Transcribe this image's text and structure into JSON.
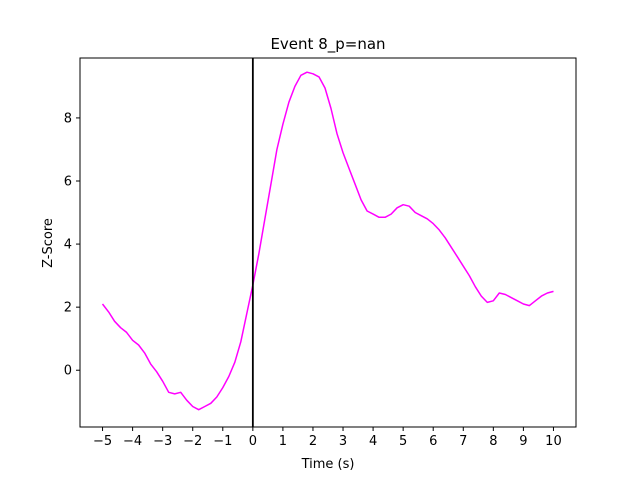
{
  "chart_data": {
    "type": "line",
    "title": "Event 8_p=nan",
    "xlabel": "Time (s)",
    "ylabel": "Z-Score",
    "xlim": [
      -5.75,
      10.75
    ],
    "ylim": [
      -1.8,
      9.9
    ],
    "xticks": [
      -5,
      -4,
      -3,
      -2,
      -1,
      0,
      1,
      2,
      3,
      4,
      5,
      6,
      7,
      8,
      9,
      10
    ],
    "xtick_labels": [
      "−5",
      "−4",
      "−3",
      "−2",
      "−1",
      "0",
      "1",
      "2",
      "3",
      "4",
      "5",
      "6",
      "7",
      "8",
      "9",
      "10"
    ],
    "yticks": [
      0,
      2,
      4,
      6,
      8
    ],
    "ytick_labels": [
      "0",
      "2",
      "4",
      "6",
      "8"
    ],
    "grid": false,
    "event_line_x": 0,
    "colors": {
      "series": "#ff00ff",
      "event_line": "#000000"
    },
    "series": [
      {
        "x": [
          -5.0,
          -4.8,
          -4.6,
          -4.4,
          -4.2,
          -4.0,
          -3.8,
          -3.6,
          -3.4,
          -3.2,
          -3.0,
          -2.8,
          -2.6,
          -2.4,
          -2.2,
          -2.0,
          -1.8,
          -1.6,
          -1.4,
          -1.2,
          -1.0,
          -0.8,
          -0.6,
          -0.4,
          -0.2,
          0.0,
          0.2,
          0.4,
          0.6,
          0.8,
          1.0,
          1.2,
          1.4,
          1.6,
          1.8,
          2.0,
          2.2,
          2.4,
          2.6,
          2.8,
          3.0,
          3.2,
          3.4,
          3.6,
          3.8,
          4.0,
          4.2,
          4.4,
          4.6,
          4.8,
          5.0,
          5.2,
          5.4,
          5.6,
          5.8,
          6.0,
          6.2,
          6.4,
          6.6,
          6.8,
          7.0,
          7.2,
          7.4,
          7.6,
          7.8,
          8.0,
          8.2,
          8.4,
          8.6,
          8.8,
          9.0,
          9.2,
          9.4,
          9.6,
          9.8,
          10.0
        ],
        "y": [
          2.1,
          1.85,
          1.55,
          1.35,
          1.2,
          0.95,
          0.8,
          0.55,
          0.2,
          -0.05,
          -0.35,
          -0.7,
          -0.75,
          -0.7,
          -0.95,
          -1.15,
          -1.25,
          -1.15,
          -1.05,
          -0.85,
          -0.55,
          -0.2,
          0.25,
          0.9,
          1.8,
          2.7,
          3.7,
          4.8,
          5.9,
          7.0,
          7.8,
          8.5,
          9.0,
          9.35,
          9.45,
          9.4,
          9.3,
          8.95,
          8.3,
          7.5,
          6.9,
          6.4,
          5.9,
          5.4,
          5.05,
          4.95,
          4.85,
          4.85,
          4.95,
          5.15,
          5.25,
          5.2,
          5.0,
          4.9,
          4.8,
          4.65,
          4.45,
          4.2,
          3.9,
          3.6,
          3.3,
          3.0,
          2.65,
          2.35,
          2.15,
          2.2,
          2.45,
          2.4,
          2.3,
          2.2,
          2.1,
          2.05,
          2.2,
          2.35,
          2.45,
          2.5
        ]
      }
    ]
  }
}
